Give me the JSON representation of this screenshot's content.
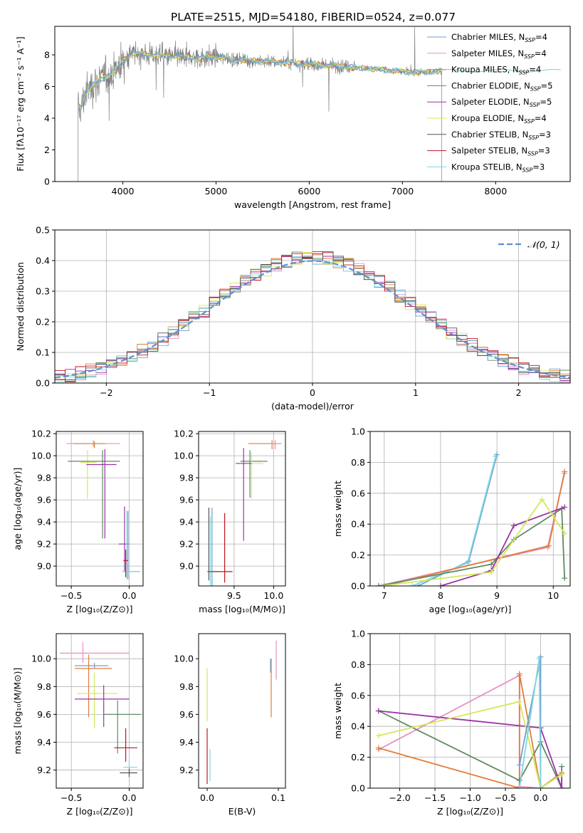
{
  "figure_title": "PLATE=2515, MJD=54180, FIBERID=0524, z=0.077",
  "palette": [
    "#6f9fd0",
    "#e88fc0",
    "#e07d3a",
    "#5f8a61",
    "#9a32a8",
    "#d4e85a",
    "#555555",
    "#c0141e",
    "#7fd6e0"
  ],
  "chart_data": [
    {
      "id": "spectrum",
      "type": "line",
      "xlabel": "wavelength [Angstrom, rest frame]",
      "ylabel": "Flux [fλ10⁻¹⁷ erg cm⁻² s⁻¹ A⁻¹]",
      "xlim": [
        3270,
        8800
      ],
      "ylim": [
        0,
        9.8
      ],
      "xticks": [
        "4000",
        "5000",
        "6000",
        "7000",
        "8000"
      ],
      "xtick_values": [
        4000,
        5000,
        6000,
        7000,
        8000
      ],
      "yticks": [
        "0",
        "2",
        "4",
        "6",
        "8"
      ],
      "ytick_values": [
        0,
        2,
        4,
        6,
        8
      ],
      "grid": false,
      "legend_position": "top-right",
      "legend": [
        {
          "label": "Chabrier MILES, N",
          "sub": "SSP",
          "tail": "=4",
          "color": "#6f9fd0"
        },
        {
          "label": "Salpeter MILES, N",
          "sub": "SSP",
          "tail": "=4",
          "color": "#e88fc0"
        },
        {
          "label": "Kroupa MILES, N",
          "sub": "SSP",
          "tail": "=4",
          "color": "#e07d3a"
        },
        {
          "label": "Chabrier ELODIE, N",
          "sub": "SSP",
          "tail": "=5",
          "color": "#5f8a61"
        },
        {
          "label": "Salpeter ELODIE, N",
          "sub": "SSP",
          "tail": "=5",
          "color": "#9a32a8"
        },
        {
          "label": "Kroupa ELODIE, N",
          "sub": "SSP",
          "tail": "=4",
          "color": "#d4e85a"
        },
        {
          "label": "Chabrier STELIB, N",
          "sub": "SSP",
          "tail": "=3",
          "color": "#555555"
        },
        {
          "label": "Salpeter STELIB, N",
          "sub": "SSP",
          "tail": "=3",
          "color": "#c0141e"
        },
        {
          "label": "Kroupa STELIB, N",
          "sub": "SSP",
          "tail": "=3",
          "color": "#7fd6e0"
        }
      ],
      "model_trend": {
        "x": [
          3550,
          3600,
          3700,
          3800,
          3900,
          4000,
          4100,
          4300,
          4500,
          4800,
          5000,
          5200,
          5500,
          5800,
          6000,
          6300,
          6500,
          6700,
          6900,
          7100,
          7300,
          7400
        ],
        "y": [
          4.6,
          5.6,
          6.2,
          6.6,
          6.9,
          7.6,
          8.1,
          8.0,
          7.9,
          7.8,
          7.9,
          7.7,
          7.6,
          7.5,
          7.4,
          7.3,
          7.2,
          7.1,
          7.0,
          6.9,
          6.9,
          7.0
        ]
      }
    },
    {
      "id": "residuals",
      "type": "step",
      "xlabel": "(data-model)/error",
      "ylabel": "Normed distribution",
      "xlim": [
        -2.5,
        2.5
      ],
      "ylim": [
        0,
        0.5
      ],
      "xticks": [
        "−2",
        "−1",
        "0",
        "1",
        "2"
      ],
      "xtick_values": [
        -2,
        -1,
        0,
        1,
        2
      ],
      "yticks": [
        "0.0",
        "0.1",
        "0.2",
        "0.3",
        "0.4",
        "0.5"
      ],
      "ytick_values": [
        0,
        0.1,
        0.2,
        0.3,
        0.4,
        0.5
      ],
      "grid": true,
      "legend_position": "top-right",
      "legend": [
        {
          "label": "𝒩(0, 1)",
          "color": "#6f9fd0",
          "style": "dashed"
        }
      ],
      "bin_width": 0.1,
      "bin_start": -2.5
    },
    {
      "id": "age_vs_Z",
      "type": "errorbar",
      "xlabel": "Z [log₁₀(Z/Z⊙)]",
      "ylabel": "age  [log₁₀(age/yr)]",
      "xlim": [
        -0.63,
        0.12
      ],
      "ylim": [
        8.82,
        10.22
      ],
      "xticks": [
        "−0.5",
        "0.0"
      ],
      "xtick_values": [
        -0.5,
        0.0
      ],
      "yticks": [
        "9.0",
        "9.2",
        "9.4",
        "9.6",
        "9.8",
        "10.0",
        "10.2"
      ],
      "ytick_values": [
        9.0,
        9.2,
        9.4,
        9.6,
        9.8,
        10.0,
        10.2
      ],
      "grid": true,
      "points": [
        {
          "x": -0.31,
          "y": 10.11,
          "xerr": [
            0.23,
            0.23
          ],
          "yerr": [
            0.03,
            0.03
          ],
          "color": "#e88fc0"
        },
        {
          "x": -0.3,
          "y": 10.11,
          "xerr": [
            0.18,
            0.1
          ],
          "yerr": [
            0.04,
            0.02
          ],
          "color": "#e07d3a"
        },
        {
          "x": -0.36,
          "y": 9.94,
          "xerr": [
            0.06,
            0.08
          ],
          "yerr": [
            0.33,
            0.11
          ],
          "color": "#d4e85a"
        },
        {
          "x": -0.23,
          "y": 9.95,
          "xerr": [
            0.3,
            0.15
          ],
          "yerr": [
            0.7,
            0.1
          ],
          "color": "#5f8a61"
        },
        {
          "x": -0.21,
          "y": 9.92,
          "xerr": [
            0.16,
            0.1
          ],
          "yerr": [
            0.67,
            0.14
          ],
          "color": "#9a32a8"
        },
        {
          "x": -0.04,
          "y": 9.2,
          "xerr": [
            0.05,
            0.04
          ],
          "yerr": [
            0.25,
            0.34
          ],
          "color": "#9a32a8"
        },
        {
          "x": -0.01,
          "y": 8.95,
          "xerr": [
            0.05,
            0.1
          ],
          "yerr": [
            0.07,
            0.55
          ],
          "color": "#6f9fd0"
        },
        {
          "x": -0.02,
          "y": 8.95,
          "xerr": [
            0.04,
            0.1
          ],
          "yerr": [
            0.07,
            0.55
          ],
          "color": "#7fd6e0"
        },
        {
          "x": -0.03,
          "y": 9.05,
          "xerr": [
            0.02,
            0.02
          ],
          "yerr": [
            0.15,
            0.1
          ],
          "color": "#c0141e"
        }
      ]
    },
    {
      "id": "age_vs_mass",
      "type": "errorbar",
      "xlabel": "mass [log₁₀(M/M⊙)]",
      "ylabel": "",
      "xlim": [
        9.05,
        10.15
      ],
      "ylim": [
        8.82,
        10.22
      ],
      "xticks": [
        "9.5",
        "10.0"
      ],
      "xtick_values": [
        9.5,
        10.0
      ],
      "yticks": [
        "9.0",
        "9.2",
        "9.4",
        "9.6",
        "9.8",
        "10.0",
        "10.2"
      ],
      "ytick_values": [
        9.0,
        9.2,
        9.4,
        9.6,
        9.8,
        10.0,
        10.2
      ],
      "grid": true,
      "points": [
        {
          "x": 9.98,
          "y": 10.11,
          "xerr": [
            0.3,
            0.12
          ],
          "yerr": [
            0.05,
            0.03
          ],
          "color": "#e07d3a"
        },
        {
          "x": 10.02,
          "y": 10.11,
          "xerr": [
            0.05,
            0.08
          ],
          "yerr": [
            0.05,
            0.03
          ],
          "color": "#e88fc0"
        },
        {
          "x": 9.7,
          "y": 9.95,
          "xerr": [
            0.12,
            0.22
          ],
          "yerr": [
            0.33,
            0.1
          ],
          "color": "#5f8a61"
        },
        {
          "x": 9.72,
          "y": 9.93,
          "xerr": [
            0.08,
            0.15
          ],
          "yerr": [
            0.32,
            0.1
          ],
          "color": "#d4e85a"
        },
        {
          "x": 9.62,
          "y": 9.93,
          "xerr": [
            0.1,
            0.1
          ],
          "yerr": [
            0.7,
            0.14
          ],
          "color": "#9a32a8"
        },
        {
          "x": 9.22,
          "y": 8.95,
          "xerr": [
            0.05,
            0.1
          ],
          "yerr": [
            0.15,
            0.58
          ],
          "color": "#6f9fd0"
        },
        {
          "x": 9.2,
          "y": 8.95,
          "xerr": [
            0.03,
            0.03
          ],
          "yerr": [
            0.15,
            0.5
          ],
          "color": "#7fd6e0"
        },
        {
          "x": 9.38,
          "y": 8.95,
          "xerr": [
            0.15,
            0.1
          ],
          "yerr": [
            0.1,
            0.53
          ],
          "color": "#c0141e"
        },
        {
          "x": 9.18,
          "y": 8.95,
          "xerr": [
            0.02,
            0.06
          ],
          "yerr": [
            0.08,
            0.58
          ],
          "color": "#555555"
        }
      ]
    },
    {
      "id": "weight_vs_age",
      "type": "line",
      "xlabel": "age  [log₁₀(age/yr)]",
      "ylabel": "mass weight",
      "xlim": [
        6.75,
        10.3
      ],
      "ylim": [
        0,
        1.0
      ],
      "xticks": [
        "7",
        "8",
        "9",
        "10"
      ],
      "xtick_values": [
        7,
        8,
        9,
        10
      ],
      "yticks": [
        "0.0",
        "0.2",
        "0.4",
        "0.6",
        "0.8",
        "1.0"
      ],
      "ytick_values": [
        0,
        0.2,
        0.4,
        0.6,
        0.8,
        1.0
      ],
      "grid": true,
      "series": [
        {
          "color": "#6f9fd0",
          "x": [
            7.6,
            8.5,
            9.0
          ],
          "y": [
            0.0,
            0.16,
            0.85
          ]
        },
        {
          "color": "#7fd6e0",
          "x": [
            7.5,
            8.48,
            8.98
          ],
          "y": [
            0.0,
            0.15,
            0.84
          ]
        },
        {
          "color": "#e88fc0",
          "x": [
            6.9,
            9.9,
            10.2
          ],
          "y": [
            0.0,
            0.25,
            0.73
          ]
        },
        {
          "color": "#e07d3a",
          "x": [
            7.0,
            9.92,
            10.2
          ],
          "y": [
            0.0,
            0.26,
            0.74
          ]
        },
        {
          "color": "#5f8a61",
          "x": [
            6.9,
            8.9,
            9.3,
            10.15,
            10.2
          ],
          "y": [
            0.0,
            0.14,
            0.3,
            0.5,
            0.05
          ]
        },
        {
          "color": "#9a32a8",
          "x": [
            8.0,
            8.9,
            9.3,
            10.2
          ],
          "y": [
            0.0,
            0.1,
            0.39,
            0.51
          ]
        },
        {
          "color": "#d4e85a",
          "x": [
            6.95,
            8.9,
            9.8,
            10.2
          ],
          "y": [
            0.0,
            0.09,
            0.56,
            0.34
          ]
        }
      ]
    },
    {
      "id": "mass_vs_Z",
      "type": "errorbar",
      "xlabel": "Z [log₁₀(Z/Z⊙)]",
      "ylabel": "mass [log₁₀(M/M⊙)]",
      "xlim": [
        -0.63,
        0.12
      ],
      "ylim": [
        9.07,
        10.18
      ],
      "xticks": [
        "−0.5",
        "0.0"
      ],
      "xtick_values": [
        -0.5,
        0.0
      ],
      "yticks": [
        "9.2",
        "9.4",
        "9.6",
        "9.8",
        "10.0"
      ],
      "ytick_values": [
        9.2,
        9.4,
        9.6,
        9.8,
        10.0
      ],
      "grid": true,
      "points": [
        {
          "x": -0.4,
          "y": 10.04,
          "xerr": [
            0.2,
            0.4
          ],
          "yerr": [
            0.07,
            0.08
          ],
          "color": "#e88fc0"
        },
        {
          "x": -0.3,
          "y": 9.95,
          "xerr": [
            0.17,
            0.12
          ],
          "yerr": [
            0.02,
            0.02
          ],
          "color": "#6f9fd0"
        },
        {
          "x": -0.35,
          "y": 9.93,
          "xerr": [
            0.12,
            0.2
          ],
          "yerr": [
            0.35,
            0.1
          ],
          "color": "#e07d3a"
        },
        {
          "x": -0.3,
          "y": 9.75,
          "xerr": [
            0.15,
            0.2
          ],
          "yerr": [
            0.25,
            0.15
          ],
          "color": "#d4e85a"
        },
        {
          "x": -0.22,
          "y": 9.71,
          "xerr": [
            0.25,
            0.22
          ],
          "yerr": [
            0.2,
            0.1
          ],
          "color": "#9a32a8"
        },
        {
          "x": -0.1,
          "y": 9.6,
          "xerr": [
            0.12,
            0.2
          ],
          "yerr": [
            0.28,
            0.1
          ],
          "color": "#5f8a61"
        },
        {
          "x": -0.03,
          "y": 9.36,
          "xerr": [
            0.1,
            0.1
          ],
          "yerr": [
            0.1,
            0.14
          ],
          "color": "#c0141e"
        },
        {
          "x": 0.0,
          "y": 9.22,
          "xerr": [
            0.05,
            0.07
          ],
          "yerr": [
            0.05,
            0.05
          ],
          "color": "#7fd6e0"
        },
        {
          "x": 0.0,
          "y": 9.18,
          "xerr": [
            0.08,
            0.07
          ],
          "yerr": [
            0.03,
            0.03
          ],
          "color": "#555555"
        }
      ]
    },
    {
      "id": "mass_vs_EBV",
      "type": "errorbar",
      "xlabel": "E(B-V)",
      "ylabel": "",
      "xlim": [
        -0.012,
        0.11
      ],
      "ylim": [
        9.07,
        10.18
      ],
      "xticks": [
        "0.0",
        "0.1"
      ],
      "xtick_values": [
        0.0,
        0.1
      ],
      "yticks": [
        "9.2",
        "9.4",
        "9.6",
        "9.8",
        "10.0"
      ],
      "ytick_values": [
        9.2,
        9.4,
        9.6,
        9.8,
        10.0
      ],
      "grid": false,
      "points": [
        {
          "x": 0.0,
          "y": 9.75,
          "xerr": [
            0,
            0
          ],
          "yerr": [
            0.2,
            0.18
          ],
          "color": "#d4e85a"
        },
        {
          "x": 0.0,
          "y": 9.3,
          "xerr": [
            0,
            0
          ],
          "yerr": [
            0.2,
            0.2
          ],
          "color": "#c0141e"
        },
        {
          "x": 0.004,
          "y": 9.25,
          "xerr": [
            0,
            0
          ],
          "yerr": [
            0.13,
            0.1
          ],
          "color": "#7fd6e0"
        },
        {
          "x": 0.09,
          "y": 9.8,
          "xerr": [
            0,
            0
          ],
          "yerr": [
            0.22,
            0.2
          ],
          "color": "#e07d3a"
        },
        {
          "x": 0.089,
          "y": 9.95,
          "xerr": [
            0,
            0
          ],
          "yerr": [
            0.05,
            0.05
          ],
          "color": "#6f9fd0"
        },
        {
          "x": 0.097,
          "y": 10.0,
          "xerr": [
            0,
            0
          ],
          "yerr": [
            0.15,
            0.13
          ],
          "color": "#e88fc0"
        }
      ]
    },
    {
      "id": "weight_vs_Z",
      "type": "line",
      "xlabel": "Z [log₁₀(Z/Z⊙)]",
      "ylabel": "mass weight",
      "xlim": [
        -2.42,
        0.42
      ],
      "ylim": [
        0,
        1.0
      ],
      "xticks": [
        "−2.0",
        "−1.5",
        "−1.0",
        "−0.5",
        "0.0"
      ],
      "xtick_values": [
        -2.0,
        -1.5,
        -1.0,
        -0.5,
        0.0
      ],
      "yticks": [
        "0.0",
        "0.2",
        "0.4",
        "0.6",
        "0.8",
        "1.0"
      ],
      "ytick_values": [
        0,
        0.2,
        0.4,
        0.6,
        0.8,
        1.0
      ],
      "grid": true,
      "series": [
        {
          "color": "#e88fc0",
          "x": [
            -2.3,
            -0.3,
            -0.3,
            0.0,
            0.3
          ],
          "y": [
            0.25,
            0.73,
            0.01,
            0.0,
            0.09
          ]
        },
        {
          "color": "#e07d3a",
          "x": [
            -2.3,
            -0.3,
            -0.3,
            0.0,
            0.3
          ],
          "y": [
            0.26,
            0.0,
            0.74,
            0.0,
            0.1
          ]
        },
        {
          "color": "#5f8a61",
          "x": [
            -2.3,
            -0.3,
            0.0,
            0.3,
            0.3
          ],
          "y": [
            0.5,
            0.05,
            0.3,
            0.0,
            0.14
          ]
        },
        {
          "color": "#9a32a8",
          "x": [
            -2.3,
            0.0,
            0.3,
            0.3
          ],
          "y": [
            0.5,
            0.39,
            0.0,
            0.09
          ]
        },
        {
          "color": "#d4e85a",
          "x": [
            -2.3,
            -0.3,
            0.0,
            0.3
          ],
          "y": [
            0.34,
            0.56,
            0.0,
            0.09
          ]
        },
        {
          "color": "#6f9fd0",
          "x": [
            -0.3,
            0.0,
            0.0
          ],
          "y": [
            0.15,
            0.85,
            0.0
          ]
        },
        {
          "color": "#7fd6e0",
          "x": [
            -0.3,
            -0.02,
            0.0
          ],
          "y": [
            0.0,
            0.84,
            0.0
          ]
        }
      ]
    }
  ]
}
